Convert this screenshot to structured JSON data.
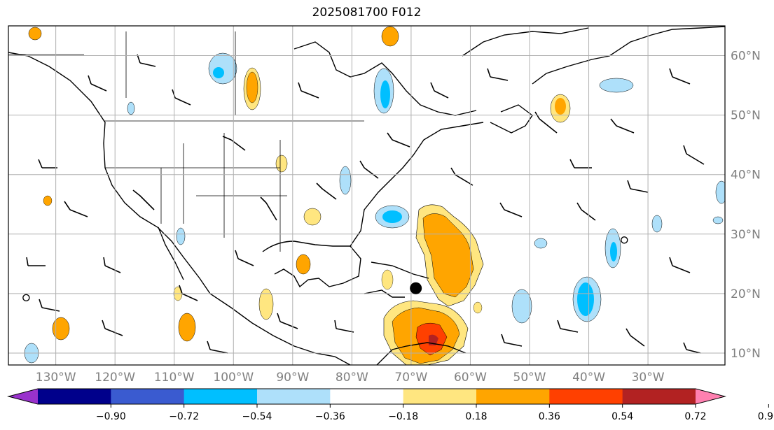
{
  "title": "2025081700 F012",
  "map": {
    "lon_range": [
      -138,
      -17
    ],
    "lat_range": [
      8,
      65
    ],
    "lon_labels": [
      "130°W",
      "120°W",
      "110°W",
      "100°W",
      "90°W",
      "80°W",
      "70°W",
      "60°W",
      "50°W",
      "40°W",
      "30°W"
    ],
    "lon_values": [
      -130,
      -120,
      -110,
      -100,
      -90,
      -80,
      -70,
      -60,
      -50,
      -40,
      -30
    ],
    "lat_labels": [
      "10°N",
      "20°N",
      "30°N",
      "40°N",
      "50°N",
      "60°N"
    ],
    "lat_values": [
      10,
      20,
      30,
      40,
      50,
      60
    ]
  },
  "colorbar": {
    "colors": [
      "#9932cc",
      "#00008b",
      "#3a5bd0",
      "#00bfff",
      "#aee0fa",
      "#ffffff",
      "#ffe680",
      "#ffa500",
      "#ff4000",
      "#b22222",
      "#ff80b0"
    ],
    "ticks": [
      "−0.90",
      "−0.72",
      "−0.54",
      "−0.36",
      "−0.18",
      "0.18",
      "0.36",
      "0.54",
      "0.72",
      "0.90"
    ]
  },
  "markers": [
    {
      "lon": -69.2,
      "lat": 20.9,
      "kind": "filled-dot"
    },
    {
      "lon": -135.0,
      "lat": 19.3,
      "kind": "open-circle"
    },
    {
      "lon": -34.0,
      "lat": 29.0,
      "kind": "open-circle"
    }
  ]
}
